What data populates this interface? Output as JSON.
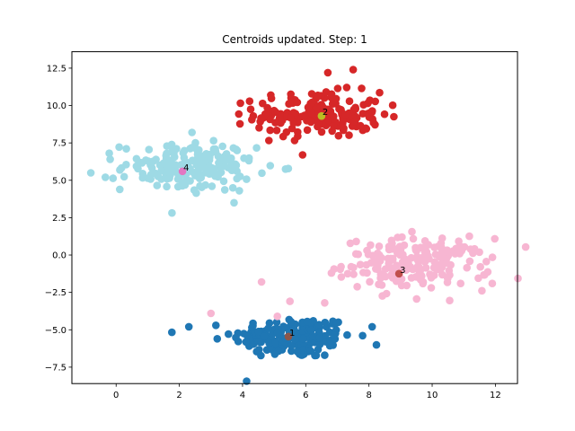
{
  "chart_data": {
    "type": "scatter",
    "title": "Centroids updated. Step: 1",
    "xlabel": "",
    "ylabel": "",
    "xlim": [
      -1.4,
      12.7
    ],
    "ylim": [
      -8.6,
      13.6
    ],
    "x_ticks": [
      0,
      2,
      4,
      6,
      8,
      10,
      12
    ],
    "y_ticks": [
      -7.5,
      -5.0,
      -2.5,
      0.0,
      2.5,
      5.0,
      7.5,
      10.0,
      12.5
    ],
    "x_tick_labels": [
      "0",
      "2",
      "4",
      "6",
      "8",
      "10",
      "12"
    ],
    "y_tick_labels": [
      "−7.5",
      "−5.0",
      "−2.5",
      "0.0",
      "2.5",
      "5.0",
      "7.5",
      "10.0",
      "12.5"
    ],
    "grid": false,
    "clusters": [
      {
        "id": 1,
        "color": "#1f77b4",
        "center": [
          5.6,
          -5.5
        ],
        "spread": [
          0.95,
          0.7
        ],
        "count": 180,
        "extra_points": [
          [
            2.3,
            -4.8
          ],
          [
            8.1,
            -4.8
          ],
          [
            3.2,
            -5.6
          ],
          [
            6.6,
            -6.7
          ]
        ]
      },
      {
        "id": 2,
        "color": "#d62728",
        "center": [
          6.4,
          9.4
        ],
        "spread": [
          1.0,
          0.75
        ],
        "count": 180,
        "extra_points": [
          [
            7.5,
            12.4
          ],
          [
            5.9,
            6.7
          ],
          [
            6.7,
            12.2
          ]
        ]
      },
      {
        "id": 3,
        "color": "#f7b6d2",
        "center": [
          9.5,
          -0.6
        ],
        "spread": [
          1.15,
          0.85
        ],
        "count": 200,
        "extra_points": [
          [
            11.9,
            -1.9
          ],
          [
            4.6,
            -1.8
          ],
          [
            3.0,
            -3.9
          ],
          [
            5.1,
            -4.1
          ],
          [
            6.6,
            -3.2
          ],
          [
            5.5,
            -3.1
          ]
        ]
      },
      {
        "id": 4,
        "color": "#9edae5",
        "center": [
          2.3,
          5.9
        ],
        "spread": [
          1.05,
          0.8
        ],
        "count": 180,
        "extra_points": [
          [
            -0.8,
            5.5
          ],
          [
            3.9,
            4.3
          ],
          [
            3.8,
            6.0
          ],
          [
            2.4,
            8.2
          ]
        ]
      }
    ],
    "centroids": [
      {
        "label": "1",
        "x": 5.45,
        "y": -5.45,
        "color": "#8c564b"
      },
      {
        "label": "2",
        "x": 6.5,
        "y": 9.3,
        "color": "#bcbd22"
      },
      {
        "label": "3",
        "x": 8.95,
        "y": -1.25,
        "color": "#c0504d"
      },
      {
        "label": "4",
        "x": 2.1,
        "y": 5.6,
        "color": "#e377c2"
      }
    ]
  }
}
